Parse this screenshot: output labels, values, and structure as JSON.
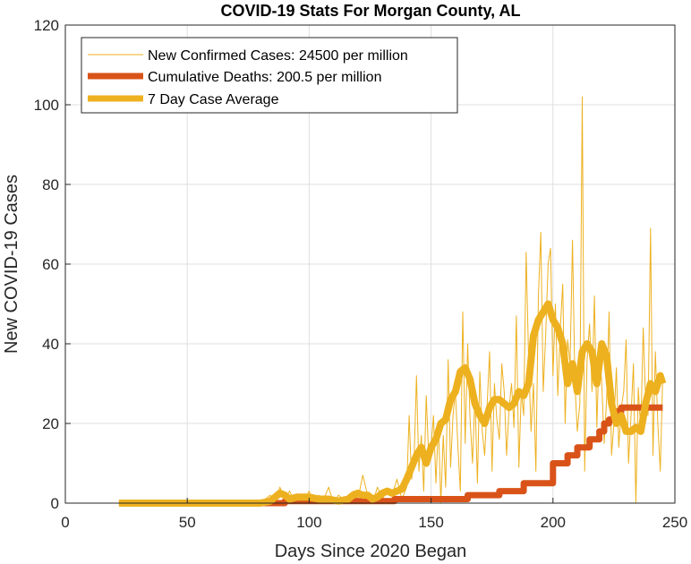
{
  "chart_data": {
    "type": "line",
    "title": "COVID-19 Stats For Morgan County, AL",
    "xlabel": "Days Since 2020 Began",
    "ylabel": "New COVID-19 Cases",
    "xlim": [
      0,
      250
    ],
    "ylim": [
      0,
      120
    ],
    "xticks": [
      0,
      50,
      100,
      150,
      200,
      250
    ],
    "yticks": [
      0,
      20,
      40,
      60,
      80,
      100,
      120
    ],
    "xtick_labels": [
      "0",
      "50",
      "100",
      "150",
      "200",
      "250"
    ],
    "ytick_labels": [
      "0",
      "20",
      "40",
      "60",
      "80",
      "100",
      "120"
    ],
    "grid": true,
    "legend_position": "top-left",
    "series": [
      {
        "name": "New Confirmed Cases: 24500 per million",
        "color": "#EDB120",
        "style": "thin",
        "x": [
          22,
          30,
          40,
          50,
          60,
          70,
          80,
          84,
          86,
          88,
          90,
          92,
          94,
          96,
          98,
          100,
          102,
          104,
          106,
          108,
          110,
          112,
          114,
          116,
          118,
          120,
          122,
          124,
          126,
          128,
          130,
          132,
          134,
          136,
          138,
          140,
          141,
          142,
          143,
          144,
          145,
          146,
          147,
          148,
          149,
          150,
          151,
          152,
          153,
          154,
          155,
          156,
          157,
          158,
          159,
          160,
          161,
          162,
          163,
          164,
          165,
          166,
          167,
          168,
          169,
          170,
          171,
          172,
          173,
          174,
          175,
          176,
          177,
          178,
          179,
          180,
          181,
          182,
          183,
          184,
          185,
          186,
          187,
          188,
          189,
          190,
          191,
          192,
          193,
          194,
          195,
          196,
          197,
          198,
          199,
          200,
          201,
          202,
          203,
          204,
          205,
          206,
          207,
          208,
          209,
          210,
          211,
          212,
          213,
          214,
          215,
          216,
          217,
          218,
          219,
          220,
          221,
          222,
          223,
          224,
          225,
          226,
          227,
          228,
          229,
          230,
          231,
          232,
          233,
          234,
          235,
          236,
          237,
          238,
          239,
          240,
          241,
          242,
          243,
          244,
          245
        ],
        "values": [
          0,
          0,
          0,
          0,
          0,
          0,
          0,
          2,
          0,
          4,
          1,
          3,
          0,
          2,
          1,
          3,
          0,
          2,
          1,
          4,
          0,
          2,
          1,
          0,
          3,
          1,
          7,
          2,
          0,
          4,
          1,
          3,
          2,
          6,
          1,
          4,
          22,
          6,
          10,
          32,
          8,
          17,
          3,
          27,
          12,
          14,
          22,
          5,
          20,
          0,
          17,
          4,
          36,
          9,
          22,
          28,
          14,
          3,
          48,
          15,
          40,
          21,
          10,
          27,
          5,
          33,
          18,
          12,
          25,
          38,
          8,
          30,
          21,
          16,
          35,
          28,
          12,
          24,
          30,
          19,
          47,
          9,
          28,
          22,
          63,
          36,
          18,
          30,
          8,
          52,
          68,
          28,
          42,
          60,
          64,
          32,
          50,
          27,
          44,
          55,
          20,
          41,
          35,
          66,
          30,
          18,
          25,
          102,
          8,
          36,
          45,
          28,
          52,
          19,
          40,
          30,
          15,
          26,
          48,
          12,
          20,
          34,
          14,
          24,
          28,
          41,
          10,
          22,
          35,
          0,
          29,
          18,
          44,
          26,
          22,
          69,
          12,
          38,
          20,
          8,
          32
        ],
        "line_width": 1
      },
      {
        "name": "Cumulative Deaths: 200.5 per million",
        "color": "#D95319",
        "style": "step",
        "x": [
          22,
          84,
          90,
          135,
          163,
          165,
          175,
          178,
          186,
          188,
          198,
          200,
          206,
          210,
          215,
          219,
          221,
          223,
          225,
          226,
          228,
          245
        ],
        "values": [
          0,
          0,
          0.5,
          1,
          1,
          2,
          2,
          3,
          3,
          5,
          5,
          10,
          12,
          14,
          16,
          18,
          20,
          21,
          22,
          23,
          24,
          24
        ],
        "line_width": 7
      },
      {
        "name": "7 Day Case Average",
        "color": "#EDB120",
        "style": "thick",
        "x": [
          22,
          40,
          60,
          80,
          84,
          86,
          88,
          90,
          92,
          95,
          98,
          100,
          104,
          108,
          112,
          116,
          118,
          120,
          122,
          124,
          126,
          128,
          130,
          132,
          134,
          136,
          138,
          140,
          142,
          144,
          146,
          148,
          150,
          152,
          154,
          156,
          158,
          160,
          162,
          164,
          166,
          168,
          170,
          172,
          174,
          176,
          178,
          180,
          182,
          184,
          186,
          188,
          190,
          192,
          194,
          196,
          198,
          200,
          202,
          204,
          206,
          208,
          210,
          212,
          214,
          216,
          218,
          220,
          222,
          224,
          226,
          228,
          230,
          232,
          234,
          236,
          238,
          240,
          242,
          244,
          245
        ],
        "values": [
          0,
          0,
          0,
          0,
          0.5,
          1.5,
          2.5,
          2,
          1,
          1.5,
          1.5,
          1.5,
          1,
          1,
          0.5,
          1,
          2,
          2.5,
          2,
          2,
          1,
          1.5,
          2.5,
          3,
          2.5,
          3,
          3.5,
          6,
          9,
          12,
          14,
          10,
          14,
          16,
          20,
          21,
          26,
          28,
          33,
          34,
          31,
          25,
          22,
          20,
          24,
          26,
          26,
          25,
          24,
          25,
          28,
          27,
          30,
          42,
          46,
          48,
          50,
          46,
          44,
          40,
          30,
          35,
          28,
          38,
          40,
          38,
          30,
          40,
          37,
          25,
          20,
          22,
          18,
          18,
          19,
          18,
          25,
          30,
          28,
          32,
          30
        ],
        "line_width": 8
      }
    ]
  }
}
